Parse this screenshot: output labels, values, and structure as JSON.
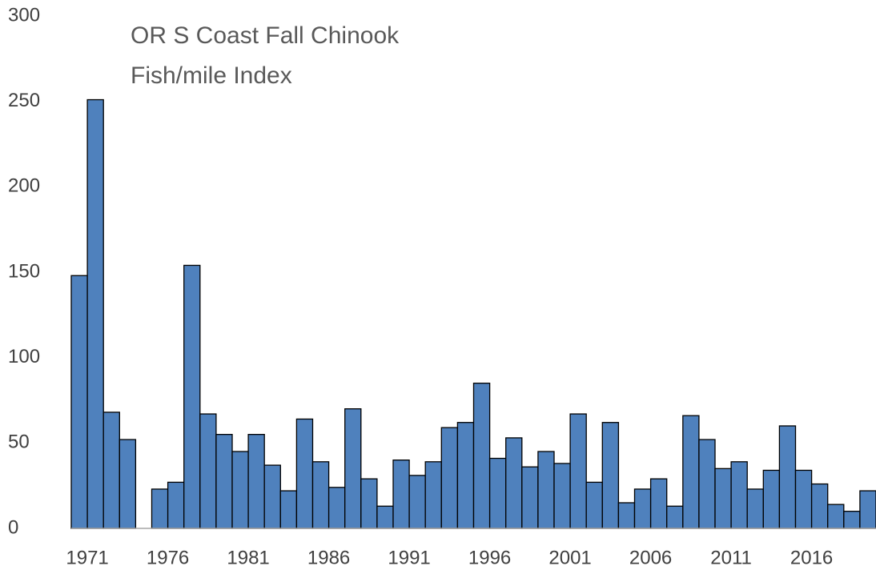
{
  "chart_data": {
    "type": "bar",
    "title": [
      "OR S Coast Fall Chinook",
      "Fish/mile Index"
    ],
    "categories": [
      "1971",
      null,
      null,
      null,
      null,
      "1976",
      null,
      null,
      null,
      null,
      "1981",
      null,
      null,
      null,
      null,
      "1986",
      null,
      null,
      null,
      null,
      "1991",
      null,
      null,
      null,
      null,
      "1996",
      null,
      null,
      null,
      null,
      "2001",
      null,
      null,
      null,
      null,
      "2006",
      null,
      null,
      null,
      null,
      "2011",
      null,
      null,
      null,
      null,
      "2016",
      null,
      null,
      null,
      null
    ],
    "values": [
      148,
      251,
      68,
      52,
      null,
      23,
      27,
      154,
      67,
      55,
      45,
      55,
      37,
      22,
      64,
      39,
      24,
      70,
      29,
      13,
      40,
      31,
      39,
      59,
      62,
      85,
      41,
      53,
      36,
      45,
      38,
      67,
      27,
      62,
      15,
      23,
      29,
      13,
      66,
      52,
      35,
      39,
      23,
      34,
      60,
      34,
      26,
      14,
      10,
      22
    ],
    "color": "#4f81bd",
    "ylim": [
      0,
      300
    ],
    "yticks": [
      0,
      50,
      100,
      150,
      200,
      250,
      300
    ],
    "grid": false
  }
}
